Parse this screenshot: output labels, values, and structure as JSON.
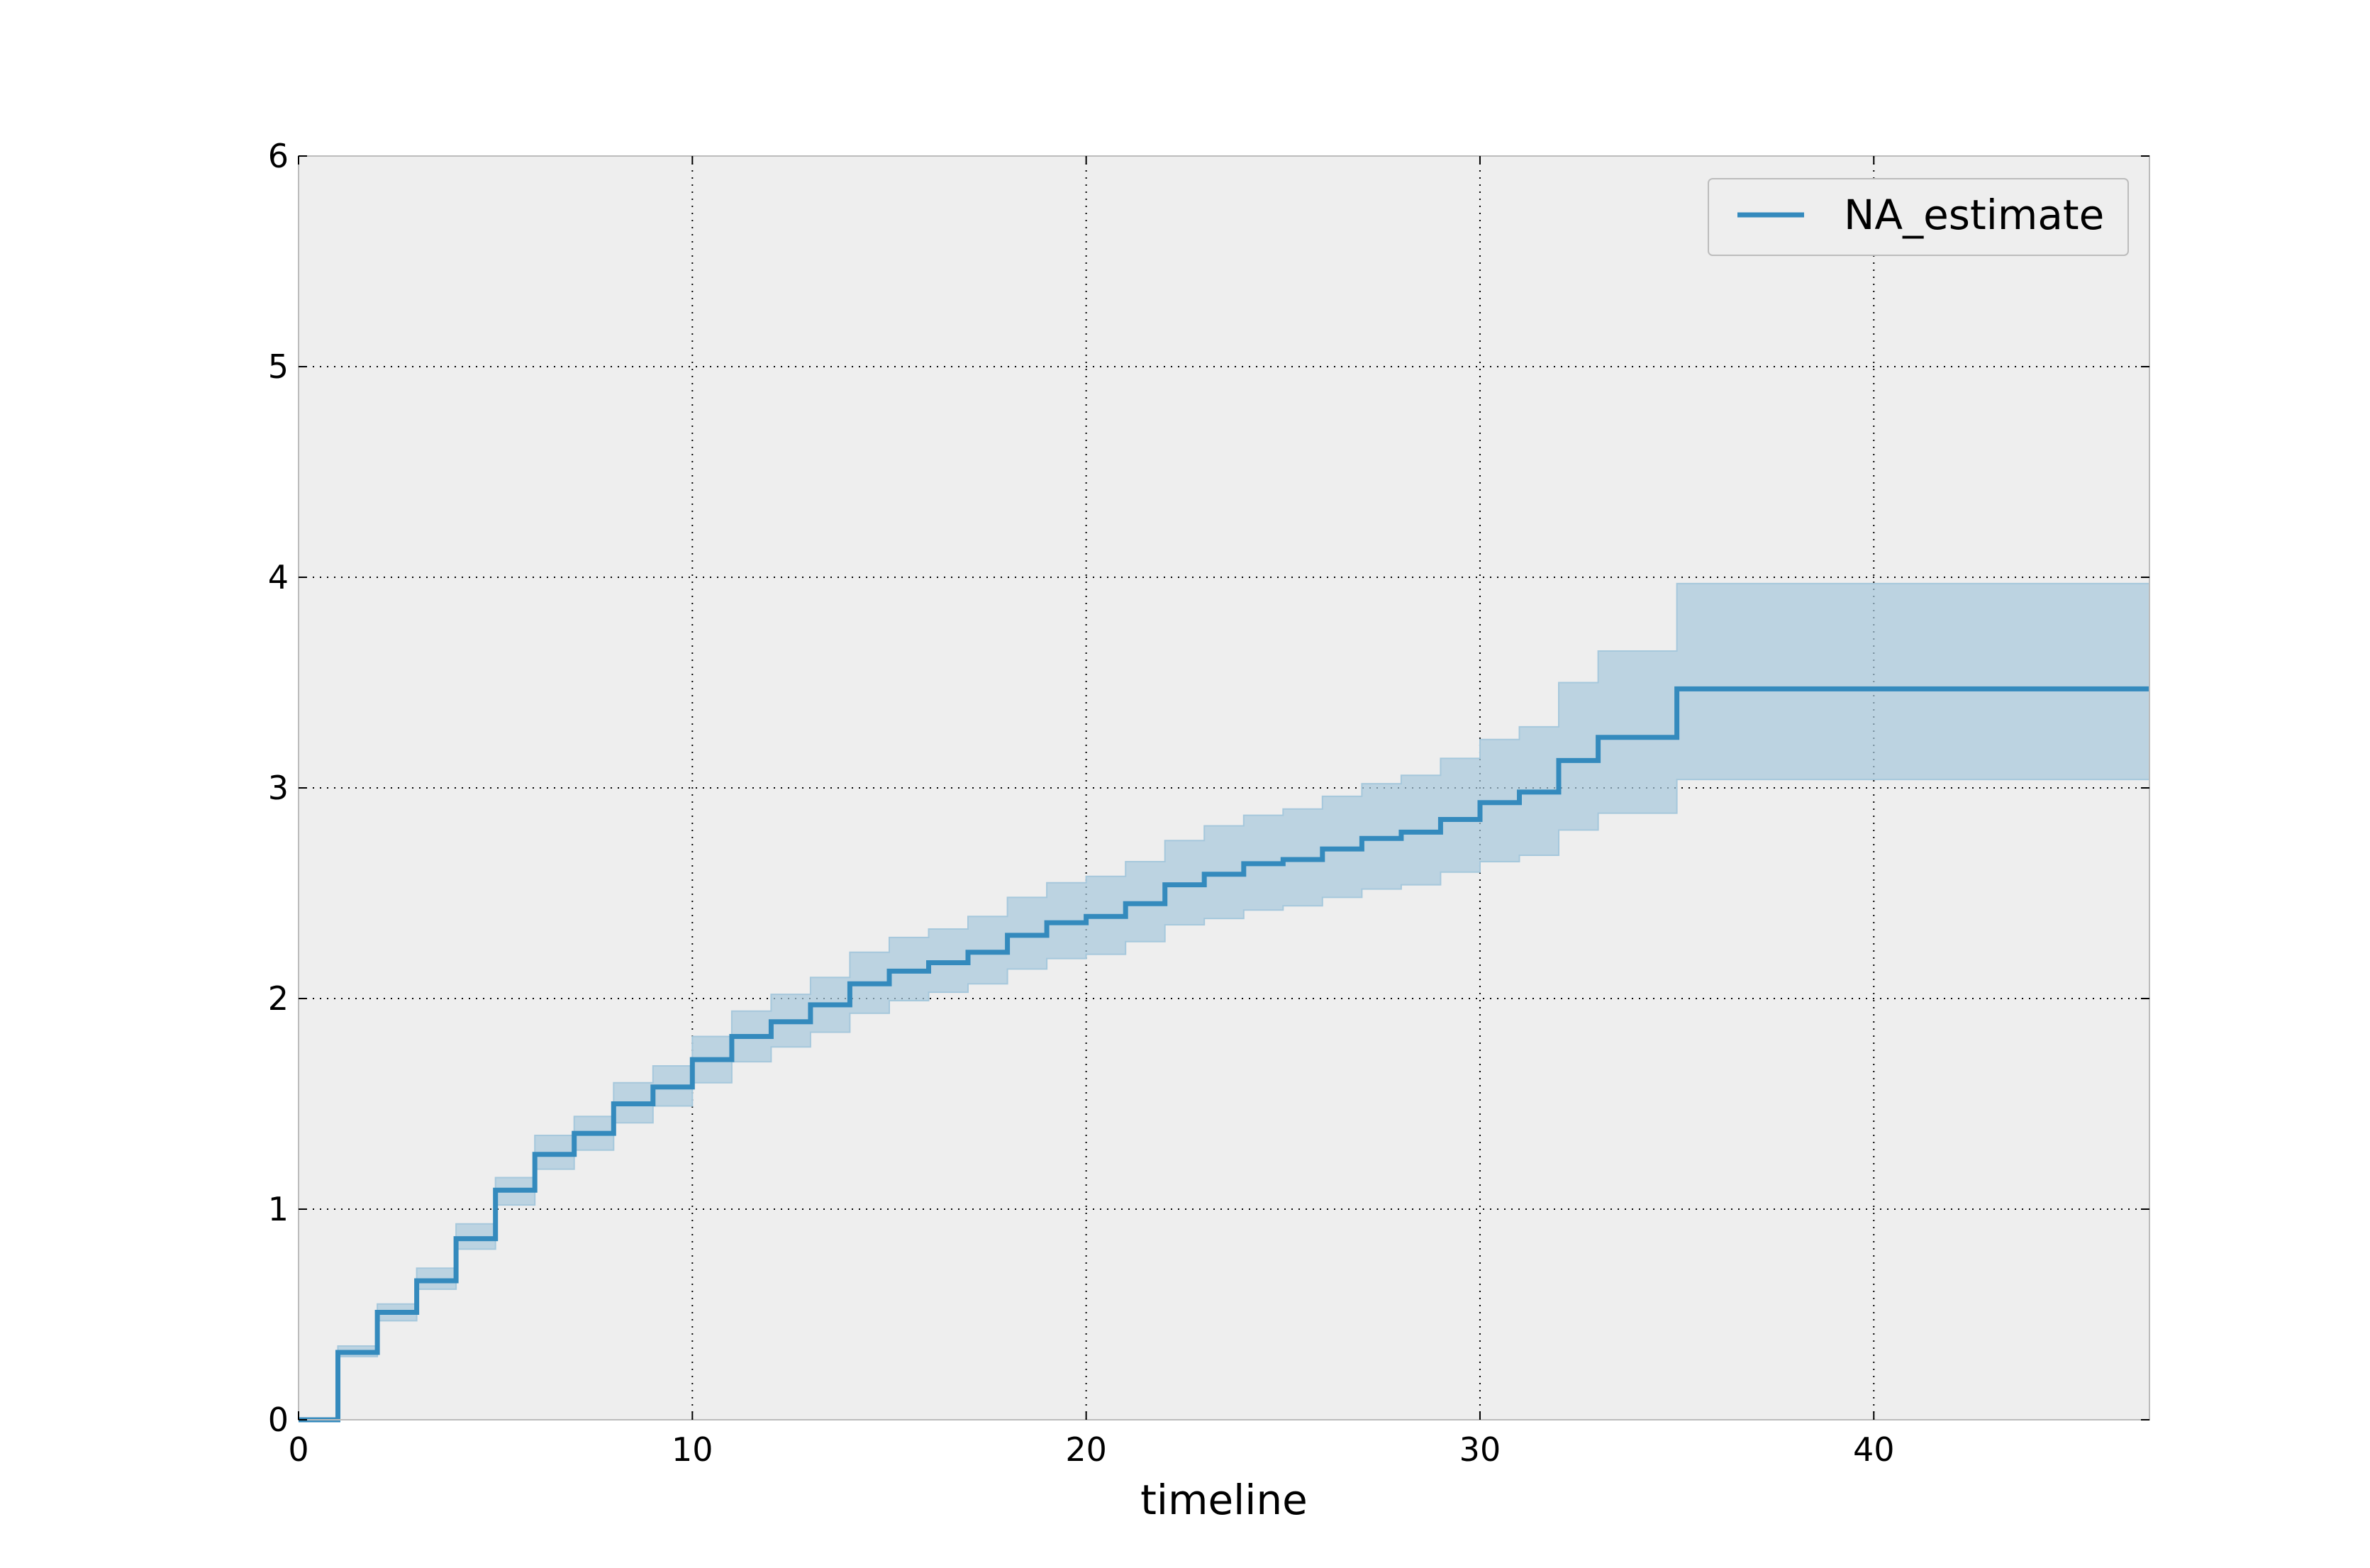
{
  "chart_data": {
    "type": "line",
    "title": "",
    "xlabel": "timeline",
    "ylabel": "",
    "xlim": [
      0,
      47
    ],
    "ylim": [
      0,
      6
    ],
    "xticks": [
      0,
      10,
      20,
      30,
      40
    ],
    "yticks": [
      0,
      1,
      2,
      3,
      4,
      5,
      6
    ],
    "grid": true,
    "legend_position": "top-right",
    "drawstyle": "steps-post",
    "series": [
      {
        "name": "NA_estimate",
        "color": "#348ABD",
        "x": [
          0,
          1,
          2,
          3,
          4,
          5,
          6,
          7,
          8,
          9,
          10,
          11,
          12,
          13,
          14,
          15,
          16,
          17,
          18,
          19,
          20,
          21,
          22,
          23,
          24,
          25,
          26,
          27,
          28,
          29,
          30,
          31,
          32,
          33,
          35,
          47
        ],
        "y": [
          0,
          0.32,
          0.51,
          0.66,
          0.86,
          1.09,
          1.26,
          1.36,
          1.5,
          1.58,
          1.71,
          1.82,
          1.89,
          1.97,
          2.07,
          2.13,
          2.17,
          2.22,
          2.3,
          2.36,
          2.39,
          2.45,
          2.54,
          2.59,
          2.64,
          2.66,
          2.71,
          2.76,
          2.79,
          2.85,
          2.93,
          2.98,
          3.13,
          3.24,
          3.47,
          3.47
        ],
        "ci_lower": [
          0,
          0.3,
          0.47,
          0.62,
          0.81,
          1.02,
          1.19,
          1.28,
          1.41,
          1.49,
          1.6,
          1.7,
          1.77,
          1.84,
          1.93,
          1.99,
          2.03,
          2.07,
          2.14,
          2.19,
          2.21,
          2.27,
          2.35,
          2.38,
          2.42,
          2.44,
          2.48,
          2.52,
          2.54,
          2.6,
          2.65,
          2.68,
          2.8,
          2.88,
          3.04,
          3.04
        ],
        "ci_upper": [
          0,
          0.35,
          0.55,
          0.72,
          0.93,
          1.15,
          1.35,
          1.44,
          1.6,
          1.68,
          1.82,
          1.94,
          2.02,
          2.1,
          2.22,
          2.29,
          2.33,
          2.39,
          2.48,
          2.55,
          2.58,
          2.65,
          2.75,
          2.82,
          2.87,
          2.9,
          2.96,
          3.02,
          3.06,
          3.14,
          3.23,
          3.29,
          3.5,
          3.65,
          3.97,
          3.97
        ],
        "ci_color": "#A6C8DC"
      }
    ]
  }
}
